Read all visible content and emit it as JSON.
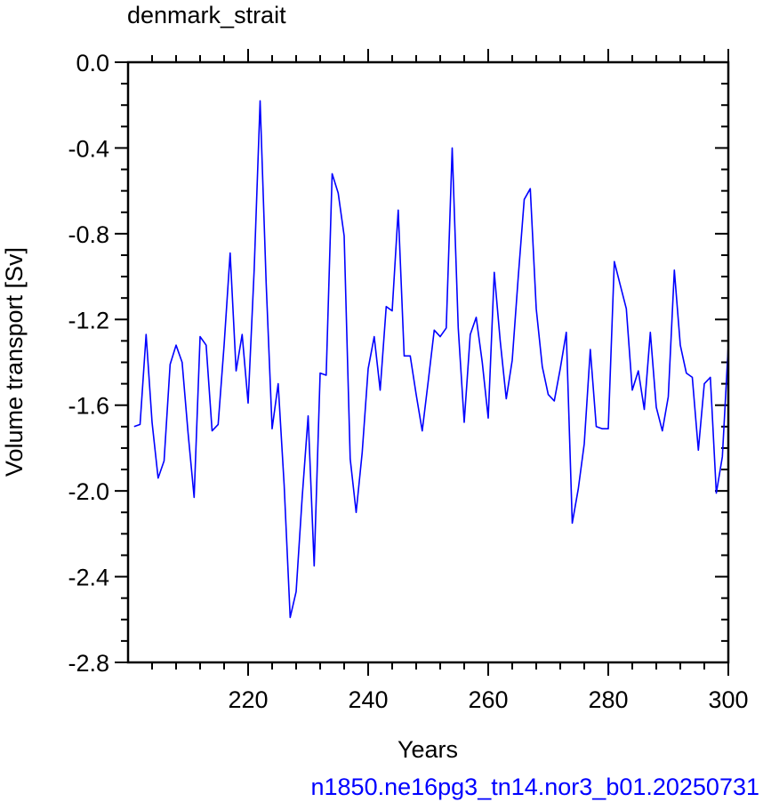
{
  "chart_data": {
    "type": "line",
    "title": "denmark_strait",
    "xlabel": "Years",
    "ylabel": "Volume transport [Sv]",
    "xlim": [
      201,
      300
    ],
    "ylim": [
      -2.8,
      0.0
    ],
    "x_ticks": [
      220,
      240,
      260,
      280,
      300
    ],
    "y_ticks": [
      0.0,
      -0.4,
      -0.8,
      -1.2,
      -1.6,
      -2.0,
      -2.4,
      -2.8
    ],
    "y_tick_labels": [
      "0.0",
      "-0.4",
      "-0.8",
      "-1.2",
      "-1.6",
      "-2.0",
      "-2.4",
      "-2.8"
    ],
    "grid": false,
    "series": [
      {
        "color": "#0000ff",
        "x": [
          201,
          202,
          203,
          204,
          205,
          206,
          207,
          208,
          209,
          210,
          211,
          212,
          213,
          214,
          215,
          216,
          217,
          218,
          219,
          220,
          221,
          222,
          223,
          224,
          225,
          226,
          227,
          228,
          229,
          230,
          231,
          232,
          233,
          234,
          235,
          236,
          237,
          238,
          239,
          240,
          241,
          242,
          243,
          244,
          245,
          246,
          247,
          248,
          249,
          250,
          251,
          252,
          253,
          254,
          255,
          256,
          257,
          258,
          259,
          260,
          261,
          262,
          263,
          264,
          265,
          266,
          267,
          268,
          269,
          270,
          271,
          272,
          273,
          274,
          275,
          276,
          277,
          278,
          279,
          280,
          281,
          282,
          283,
          284,
          285,
          286,
          287,
          288,
          289,
          290,
          291,
          292,
          293,
          294,
          295,
          296,
          297,
          298,
          299,
          300
        ],
        "y": [
          -1.7,
          -1.69,
          -1.27,
          -1.68,
          -1.94,
          -1.86,
          -1.41,
          -1.32,
          -1.4,
          -1.73,
          -2.03,
          -1.28,
          -1.32,
          -1.72,
          -1.69,
          -1.32,
          -0.89,
          -1.44,
          -1.27,
          -1.59,
          -0.97,
          -0.18,
          -1.03,
          -1.71,
          -1.5,
          -1.97,
          -2.59,
          -2.47,
          -2.03,
          -1.65,
          -2.35,
          -1.45,
          -1.46,
          -0.52,
          -0.61,
          -0.81,
          -1.85,
          -2.1,
          -1.82,
          -1.43,
          -1.28,
          -1.53,
          -1.14,
          -1.16,
          -0.69,
          -1.37,
          -1.37,
          -1.55,
          -1.72,
          -1.49,
          -1.25,
          -1.28,
          -1.24,
          -0.4,
          -1.24,
          -1.68,
          -1.27,
          -1.19,
          -1.4,
          -1.66,
          -0.98,
          -1.3,
          -1.57,
          -1.39,
          -1.0,
          -0.64,
          -0.59,
          -1.15,
          -1.42,
          -1.55,
          -1.58,
          -1.43,
          -1.26,
          -2.15,
          -1.99,
          -1.78,
          -1.34,
          -1.7,
          -1.71,
          -1.71,
          -0.93,
          -1.04,
          -1.15,
          -1.53,
          -1.44,
          -1.62,
          -1.26,
          -1.61,
          -1.72,
          -1.56,
          -0.97,
          -1.32,
          -1.45,
          -1.47,
          -1.81,
          -1.5,
          -1.47,
          -2.01,
          -1.84,
          -1.32
        ]
      }
    ]
  },
  "footer_text": "n1850.ne16pg3_tn14.nor3_b01.20250731"
}
